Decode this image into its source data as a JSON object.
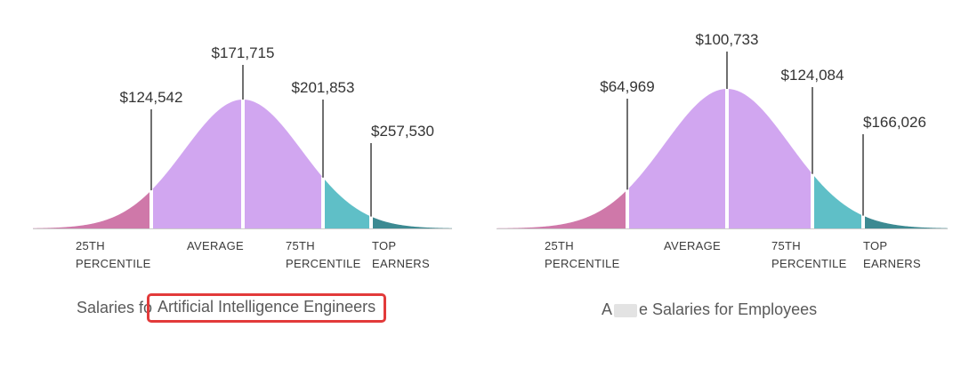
{
  "colors": {
    "left_tail": "#cf78a9",
    "middle": "#d1a6f0",
    "p75_band": "#5fbfc7",
    "top_tail": "#3d8a92",
    "divider": "#ffffff",
    "leader_line": "#222222",
    "baseline": "#cccccc",
    "highlight_box": "#e23a3a"
  },
  "chart_data": [
    {
      "type": "area",
      "subtype": "bell-curve-salary-distribution",
      "caption_prefix": "Salaries fo",
      "caption_highlight": "Artificial Intelligence Engineers",
      "markers": [
        {
          "key": "p25",
          "value": 124542,
          "label": "$124,542"
        },
        {
          "key": "avg",
          "value": 171715,
          "label": "$171,715"
        },
        {
          "key": "p75",
          "value": 201853,
          "label": "$201,853"
        },
        {
          "key": "top",
          "value": 257530,
          "label": "$257,530"
        }
      ],
      "categories": [
        [
          "25TH",
          "PERCENTILE"
        ],
        [
          "AVERAGE"
        ],
        [
          "75TH",
          "PERCENTILE"
        ],
        [
          "TOP",
          "EARNERS"
        ]
      ]
    },
    {
      "type": "area",
      "subtype": "bell-curve-salary-distribution",
      "caption_prefix": "A",
      "caption_suffix": "e Salaries for Employees",
      "markers": [
        {
          "key": "p25",
          "value": 64969,
          "label": "$64,969"
        },
        {
          "key": "avg",
          "value": 100733,
          "label": "$100,733"
        },
        {
          "key": "p75",
          "value": 124084,
          "label": "$124,084"
        },
        {
          "key": "top",
          "value": 166026,
          "label": "$166,026"
        }
      ],
      "categories": [
        [
          "25TH",
          "PERCENTILE"
        ],
        [
          "AVERAGE"
        ],
        [
          "75TH",
          "PERCENTILE"
        ],
        [
          "TOP",
          "EARNERS"
        ]
      ]
    }
  ]
}
